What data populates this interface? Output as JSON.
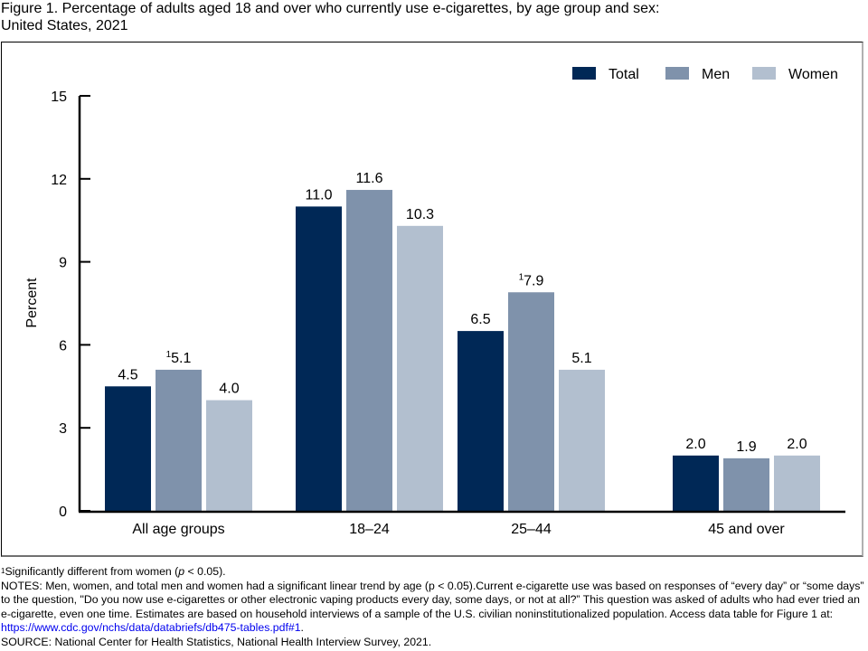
{
  "title_line1": "Figure 1. Percentage of adults aged 18 and over who currently use e-cigarettes, by age group and sex:",
  "title_line2": "United States, 2021",
  "chart_data": {
    "type": "bar",
    "title": "Percentage of adults aged 18 and over who currently use e-cigarettes, by age group and sex: United States, 2021",
    "xlabel": "",
    "ylabel": "Percent",
    "ylim": [
      0,
      15
    ],
    "yticks": [
      0,
      3,
      6,
      9,
      12,
      15
    ],
    "grid": false,
    "legend_position": "top-right",
    "categories": [
      "All age groups",
      "18–24",
      "25–44",
      "45 and over"
    ],
    "series": [
      {
        "name": "Total",
        "color": "#002856",
        "values": [
          4.5,
          11.0,
          6.5,
          2.0
        ],
        "labels": [
          "4.5",
          "11.0",
          "6.5",
          "2.0"
        ],
        "footnote": [
          false,
          false,
          false,
          false
        ]
      },
      {
        "name": "Men",
        "color": "#7f92ab",
        "values": [
          5.1,
          11.6,
          7.9,
          1.9
        ],
        "labels": [
          "5.1",
          "11.6",
          "7.9",
          "1.9"
        ],
        "footnote": [
          true,
          false,
          true,
          false
        ]
      },
      {
        "name": "Women",
        "color": "#b2bfcf",
        "values": [
          4.0,
          10.3,
          5.1,
          2.0
        ],
        "labels": [
          "4.0",
          "10.3",
          "5.1",
          "2.0"
        ],
        "footnote": [
          false,
          false,
          false,
          false
        ]
      }
    ],
    "footnote_marker": "1"
  },
  "notes": {
    "footnote_marker": "1",
    "footnote_text_before": "Significantly different from women (",
    "footnote_p": "p",
    "footnote_text_after": " < 0.05).",
    "notes_text": "NOTES: Men, women, and total men and women had a significant linear trend by age (p < 0.05).Current e-cigarette use was based on responses of “every day” or “some days” to the question, \"Do you now use e-cigarettes or other electronic vaping products every day, some days, or not at all?” This question was asked of adults who had ever tried an e-cigarette, even one time. Estimates are based on household interviews of a sample of the U.S. civilian noninstitutionalized population. Access data table for Figure 1 at: ",
    "link_text": "https://www.cdc.gov/nchs/data/databriefs/db475-tables.pdf#1",
    "notes_end": ".",
    "source": "SOURCE: National Center for Health Statistics, National Health Interview Survey, 2021."
  }
}
